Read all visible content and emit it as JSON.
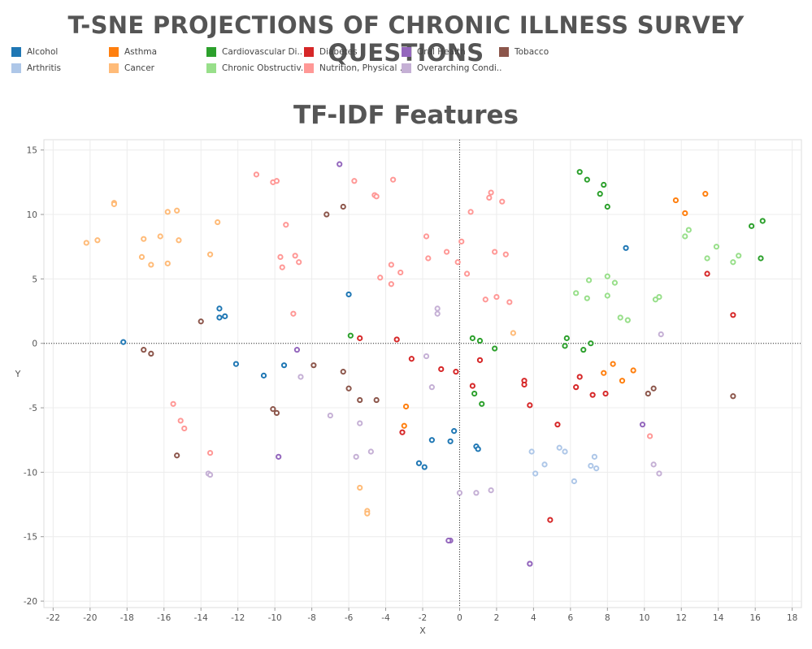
{
  "header": {
    "title": "T-SNE PROJECTIONS OF CHRONIC ILLNESS SURVEY QUESTIONS"
  },
  "legend": {
    "items": [
      {
        "label": "Alcohol",
        "color": "#1f77b4"
      },
      {
        "label": "Arthritis",
        "color": "#aec7e8"
      },
      {
        "label": "Asthma",
        "color": "#ff7f0e"
      },
      {
        "label": "Cancer",
        "color": "#ffbb78"
      },
      {
        "label": "Cardiovascular Di..",
        "color": "#2ca02c"
      },
      {
        "label": "Chronic Obstructiv..",
        "color": "#98df8a"
      },
      {
        "label": "Diabetes",
        "color": "#d62728"
      },
      {
        "label": "Nutrition, Physical ..",
        "color": "#ff9896"
      },
      {
        "label": "Oral Health",
        "color": "#9467bd"
      },
      {
        "label": "Overarching Condi..",
        "color": "#c5b0d5"
      },
      {
        "label": "Tobacco",
        "color": "#8c564b"
      }
    ]
  },
  "chart_data": {
    "type": "scatter",
    "title": "TF-IDF Features",
    "xlabel": "X",
    "ylabel": "Y",
    "xlim": [
      -22.5,
      18.5
    ],
    "ylim": [
      -20.5,
      15.8
    ],
    "xticks": [
      -22,
      -20,
      -18,
      -16,
      -14,
      -12,
      -10,
      -8,
      -6,
      -4,
      -2,
      0,
      2,
      4,
      6,
      8,
      10,
      12,
      14,
      16,
      18
    ],
    "yticks": [
      15,
      10,
      5,
      0,
      -5,
      -10,
      -15,
      -20
    ],
    "grid": true,
    "zero_lines": true,
    "series": [
      {
        "name": "Alcohol",
        "color": "#1f77b4",
        "points": [
          [
            -18.2,
            0.1
          ],
          [
            -13,
            2.7
          ],
          [
            -13,
            2
          ],
          [
            -12.7,
            2.1
          ],
          [
            -12.1,
            -1.6
          ],
          [
            -10.6,
            -2.5
          ],
          [
            -9.5,
            -1.7
          ],
          [
            -6,
            3.8
          ],
          [
            -2.2,
            -9.3
          ],
          [
            -1.9,
            -9.6
          ],
          [
            -1.5,
            -7.5
          ],
          [
            -0.5,
            -7.6
          ],
          [
            -0.3,
            -6.8
          ],
          [
            0.9,
            -8
          ],
          [
            1,
            -8.2
          ],
          [
            9,
            7.4
          ]
        ]
      },
      {
        "name": "Arthritis",
        "color": "#aec7e8",
        "points": [
          [
            3.9,
            -8.4
          ],
          [
            4.1,
            -10.1
          ],
          [
            4.6,
            -9.4
          ],
          [
            5.4,
            -8.1
          ],
          [
            5.7,
            -8.4
          ],
          [
            6.2,
            -10.7
          ],
          [
            7.1,
            -9.5
          ],
          [
            7.3,
            -8.8
          ],
          [
            7.4,
            -9.7
          ]
        ]
      },
      {
        "name": "Asthma",
        "color": "#ff7f0e",
        "points": [
          [
            -2.9,
            -4.9
          ],
          [
            -3,
            -6.4
          ],
          [
            7.8,
            -2.3
          ],
          [
            8.3,
            -1.6
          ],
          [
            8.8,
            -2.9
          ],
          [
            9.4,
            -2.1
          ],
          [
            11.7,
            11.1
          ],
          [
            12.2,
            10.1
          ],
          [
            13.3,
            11.6
          ]
        ]
      },
      {
        "name": "Cancer",
        "color": "#ffbb78",
        "points": [
          [
            -20.2,
            7.8
          ],
          [
            -19.6,
            8
          ],
          [
            -18.7,
            10.9
          ],
          [
            -18.7,
            10.8
          ],
          [
            -17.1,
            8.1
          ],
          [
            -17.2,
            6.7
          ],
          [
            -16.7,
            6.1
          ],
          [
            -16.2,
            8.3
          ],
          [
            -15.8,
            10.2
          ],
          [
            -15.8,
            6.2
          ],
          [
            -15.3,
            10.3
          ],
          [
            -15.2,
            8
          ],
          [
            -13.5,
            6.9
          ],
          [
            -13.1,
            9.4
          ],
          [
            -5.4,
            -11.2
          ],
          [
            -5,
            -13
          ],
          [
            -5,
            -13.2
          ],
          [
            2.9,
            0.8
          ]
        ]
      },
      {
        "name": "Cardiovascular Di..",
        "color": "#2ca02c",
        "points": [
          [
            -5.9,
            0.6
          ],
          [
            0.7,
            0.4
          ],
          [
            1.1,
            0.2
          ],
          [
            1.9,
            -0.4
          ],
          [
            0.8,
            -3.9
          ],
          [
            1.2,
            -4.7
          ],
          [
            5.7,
            -0.2
          ],
          [
            5.8,
            0.4
          ],
          [
            6.7,
            -0.5
          ],
          [
            7.1,
            0
          ],
          [
            6.5,
            13.3
          ],
          [
            6.9,
            12.7
          ],
          [
            7.6,
            11.6
          ],
          [
            7.8,
            12.3
          ],
          [
            8,
            10.6
          ],
          [
            15.8,
            9.1
          ],
          [
            16.4,
            9.5
          ],
          [
            16.3,
            6.6
          ]
        ]
      },
      {
        "name": "Chronic Obstructiv..",
        "color": "#98df8a",
        "points": [
          [
            6.3,
            3.9
          ],
          [
            6.9,
            3.5
          ],
          [
            7,
            4.9
          ],
          [
            8,
            5.2
          ],
          [
            8,
            3.7
          ],
          [
            8.4,
            4.7
          ],
          [
            8.7,
            2
          ],
          [
            9.1,
            1.8
          ],
          [
            10.6,
            3.4
          ],
          [
            10.8,
            3.6
          ],
          [
            12.2,
            8.3
          ],
          [
            12.4,
            8.8
          ],
          [
            13.4,
            6.6
          ],
          [
            13.9,
            7.5
          ],
          [
            14.8,
            6.3
          ],
          [
            15.1,
            6.8
          ]
        ]
      },
      {
        "name": "Diabetes",
        "color": "#d62728",
        "points": [
          [
            -5.4,
            0.4
          ],
          [
            -3.4,
            0.3
          ],
          [
            -2.6,
            -1.2
          ],
          [
            -3.1,
            -6.9
          ],
          [
            -1.0,
            -2
          ],
          [
            -0.2,
            -2.2
          ],
          [
            0.7,
            -3.3
          ],
          [
            1.1,
            -1.3
          ],
          [
            3.5,
            -2.9
          ],
          [
            3.5,
            -3.2
          ],
          [
            3.8,
            -4.8
          ],
          [
            4.9,
            -13.7
          ],
          [
            5.3,
            -6.3
          ],
          [
            6.3,
            -3.4
          ],
          [
            6.5,
            -2.6
          ],
          [
            7.2,
            -4
          ],
          [
            7.9,
            -3.9
          ],
          [
            13.4,
            5.4
          ],
          [
            14.8,
            2.2
          ]
        ]
      },
      {
        "name": "Nutrition, Physical ..",
        "color": "#ff9896",
        "points": [
          [
            -15.5,
            -4.7
          ],
          [
            -15.1,
            -6
          ],
          [
            -14.9,
            -6.6
          ],
          [
            -13.5,
            -8.5
          ],
          [
            -11,
            13.1
          ],
          [
            -10.1,
            12.5
          ],
          [
            -9.9,
            12.6
          ],
          [
            -9.7,
            6.7
          ],
          [
            -9.6,
            5.9
          ],
          [
            -9.4,
            9.2
          ],
          [
            -9,
            2.3
          ],
          [
            -8.9,
            6.8
          ],
          [
            -8.7,
            6.3
          ],
          [
            -5.7,
            12.6
          ],
          [
            -4.6,
            11.5
          ],
          [
            -4.5,
            11.4
          ],
          [
            -4.3,
            5.1
          ],
          [
            -3.7,
            6.1
          ],
          [
            -3.7,
            4.6
          ],
          [
            -3.6,
            12.7
          ],
          [
            -3.2,
            5.5
          ],
          [
            -1.8,
            8.3
          ],
          [
            -1.7,
            6.6
          ],
          [
            -0.7,
            7.1
          ],
          [
            -0.1,
            6.3
          ],
          [
            0.1,
            7.9
          ],
          [
            0.4,
            5.4
          ],
          [
            0.6,
            10.2
          ],
          [
            1.4,
            3.4
          ],
          [
            1.6,
            11.3
          ],
          [
            1.7,
            11.7
          ],
          [
            1.9,
            7.1
          ],
          [
            2,
            3.6
          ],
          [
            2.3,
            11
          ],
          [
            2.5,
            6.9
          ],
          [
            2.7,
            3.2
          ],
          [
            10.3,
            -7.2
          ]
        ]
      },
      {
        "name": "Oral Health",
        "color": "#9467bd",
        "points": [
          [
            -6.5,
            13.9
          ],
          [
            -8.8,
            -0.5
          ],
          [
            -9.8,
            -8.8
          ],
          [
            -0.5,
            -15.3
          ],
          [
            -0.6,
            -15.3
          ],
          [
            3.8,
            -17.1
          ],
          [
            3.8,
            -17.1
          ],
          [
            9.9,
            -6.3
          ]
        ]
      },
      {
        "name": "Overarching Condi..",
        "color": "#c5b0d5",
        "points": [
          [
            -13.6,
            -10.1
          ],
          [
            -13.5,
            -10.2
          ],
          [
            -8.6,
            -2.6
          ],
          [
            -7,
            -5.6
          ],
          [
            -5.6,
            -8.8
          ],
          [
            -5.4,
            -6.2
          ],
          [
            -4.8,
            -8.4
          ],
          [
            -1.8,
            -1
          ],
          [
            -1.5,
            -3.4
          ],
          [
            -1.2,
            2.7
          ],
          [
            -1.2,
            2.3
          ],
          [
            0,
            -11.6
          ],
          [
            0.9,
            -11.6
          ],
          [
            1.7,
            -11.4
          ],
          [
            10.5,
            -9.4
          ],
          [
            10.8,
            -10.1
          ],
          [
            10.9,
            0.7
          ]
        ]
      },
      {
        "name": "Tobacco",
        "color": "#8c564b",
        "points": [
          [
            -17.1,
            -0.5
          ],
          [
            -16.7,
            -0.8
          ],
          [
            -15.3,
            -8.7
          ],
          [
            -14,
            1.7
          ],
          [
            -10.1,
            -5.1
          ],
          [
            -9.9,
            -5.4
          ],
          [
            -7.9,
            -1.7
          ],
          [
            -7.2,
            10
          ],
          [
            -6.3,
            10.6
          ],
          [
            -6.3,
            -2.2
          ],
          [
            -6,
            -3.5
          ],
          [
            -5.4,
            -4.4
          ],
          [
            -4.5,
            -4.4
          ],
          [
            10.2,
            -3.9
          ],
          [
            10.5,
            -3.5
          ],
          [
            14.8,
            -4.1
          ]
        ]
      }
    ]
  }
}
